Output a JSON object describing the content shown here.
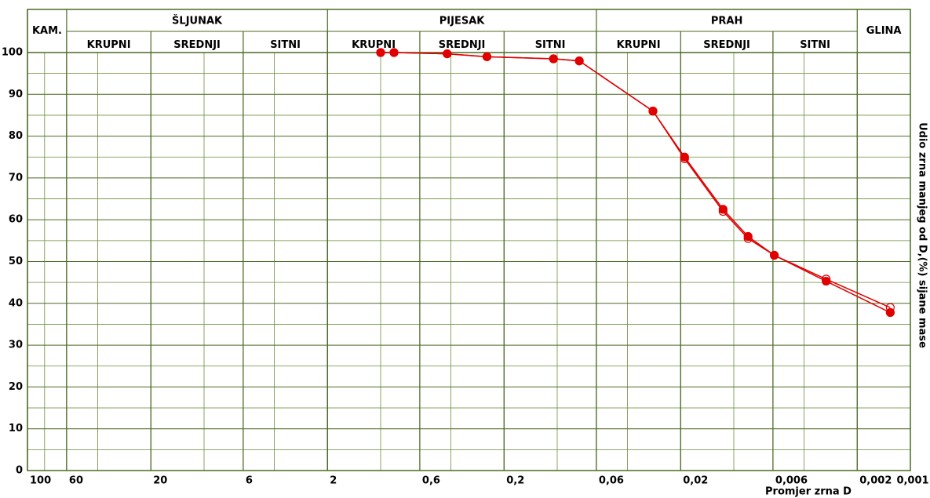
{
  "chart_data": {
    "type": "line",
    "x_label": "Promjer zrna D",
    "y_label": "Udio zrna manjeg od D,(%) sijane mase",
    "log_x": true,
    "xlim": [
      100,
      0.001
    ],
    "ylim": [
      0,
      100
    ],
    "xticks": [
      100,
      60,
      20,
      6,
      2,
      {
        "value": 0.6,
        "label": "0,6"
      },
      {
        "value": 0.2,
        "label": "0,2"
      },
      {
        "value": 0.06,
        "label": "0,06"
      },
      {
        "value": 0.02,
        "label": "0,02"
      },
      {
        "value": 0.006,
        "label": "0,006"
      },
      {
        "value": 0.002,
        "label": "0,002"
      },
      {
        "value": 0.001,
        "label": "0,001"
      }
    ],
    "xminor": [
      80,
      40,
      10,
      4,
      1,
      0.4,
      0.1,
      0.04,
      0.01,
      0.004
    ],
    "yticks": [
      0,
      10,
      20,
      30,
      40,
      50,
      60,
      70,
      80,
      90,
      100
    ],
    "yminor": [
      5,
      15,
      25,
      35,
      45,
      55,
      65,
      75,
      85,
      95
    ],
    "grid": true,
    "zones": [
      {
        "label": "KAM.",
        "from": 100,
        "to": 60
      },
      {
        "label": "ŠLJUNAK",
        "from": 60,
        "to": 2,
        "sub": [
          {
            "label": "KRUPNI",
            "from": 60,
            "to": 20
          },
          {
            "label": "SREDNJI",
            "from": 20,
            "to": 6
          },
          {
            "label": "SITNI",
            "from": 6,
            "to": 2
          }
        ]
      },
      {
        "label": "PIJESAK",
        "from": 2,
        "to": 0.06,
        "sub": [
          {
            "label": "KRUPNI",
            "from": 2,
            "to": 0.6
          },
          {
            "label": "SREDNJI",
            "from": 0.6,
            "to": 0.2
          },
          {
            "label": "SITNI",
            "from": 0.2,
            "to": 0.06
          }
        ]
      },
      {
        "label": "PRAH",
        "from": 0.06,
        "to": 0.002,
        "sub": [
          {
            "label": "KRUPNI",
            "from": 0.06,
            "to": 0.02
          },
          {
            "label": "SREDNJI",
            "from": 0.02,
            "to": 0.006
          },
          {
            "label": "SITNI",
            "from": 0.006,
            "to": 0.002
          }
        ]
      },
      {
        "label": "GLINA",
        "from": 0.002,
        "to": 0.001
      }
    ],
    "x": [
      1.0,
      0.84,
      0.42,
      0.25,
      0.105,
      0.075,
      0.0287,
      0.019,
      0.0115,
      0.0083,
      0.0059,
      0.003,
      0.0013
    ],
    "series": [
      {
        "color": "#e00000",
        "marker": "filled",
        "values": [
          100,
          100,
          99.7,
          99,
          98.5,
          98,
          86,
          75,
          62.5,
          56,
          51.5,
          45.3,
          37.8
        ]
      },
      {
        "color": "#e00000",
        "marker": "open",
        "values": [
          100,
          100,
          99.7,
          99,
          98.5,
          98,
          86,
          74.6,
          62,
          55.5,
          51.5,
          45.8,
          39
        ]
      }
    ]
  }
}
